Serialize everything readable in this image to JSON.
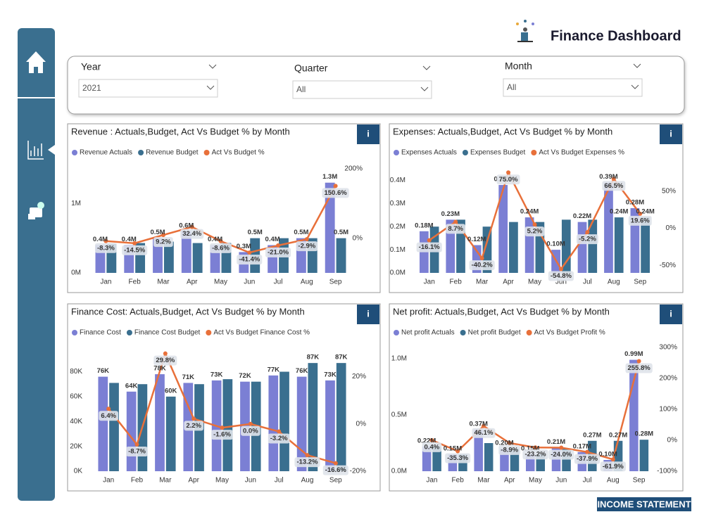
{
  "header": {
    "title": "Finance Dashboard"
  },
  "filters": [
    {
      "label": "Year",
      "value": "2021"
    },
    {
      "label": "Quarter",
      "value": "All"
    },
    {
      "label": "Month",
      "value": "All"
    }
  ],
  "info_button": "i",
  "footer": "INCOME STATEMENT",
  "chart_data": [
    {
      "type": "combo",
      "title": "Revenue : Actuals,Budget, Act Vs Budget % by Month",
      "categories": [
        "Jan",
        "Feb",
        "Mar",
        "Apr",
        "May",
        "Jun",
        "Jul",
        "Aug",
        "Sep"
      ],
      "ylim": [
        0,
        1.5
      ],
      "yticks": [
        {
          "value": 0,
          "label": "0M"
        },
        {
          "value": 1,
          "label": "1M"
        }
      ],
      "y2lim": [
        -100,
        200
      ],
      "y2ticks": [
        {
          "value": 0,
          "label": "0%"
        },
        {
          "value": 200,
          "label": "200%"
        }
      ],
      "series": [
        {
          "name": "Revenue Actuals",
          "color": "#7b7fd4",
          "type": "bar",
          "values": [
            0.4,
            0.4,
            0.5,
            0.6,
            0.4,
            0.3,
            0.4,
            0.5,
            1.3
          ],
          "value_labels": [
            "0.4M",
            "0.4M",
            "0.5M",
            "0.6M",
            "0.4M",
            "0.3M",
            "0.4M",
            "0.5M",
            "1.3M"
          ]
        },
        {
          "name": "Revenue Budget",
          "color": "#3a6f8f",
          "type": "bar",
          "values": [
            0.42,
            0.43,
            0.45,
            0.43,
            0.43,
            0.5,
            0.5,
            0.5,
            0.5
          ],
          "value_labels": [
            null,
            null,
            null,
            null,
            null,
            "0.5M",
            null,
            null,
            "0.5M"
          ]
        },
        {
          "name": "Act Vs Budget %",
          "color": "#e8703a",
          "type": "line",
          "axis": "y2",
          "values": [
            -8.3,
            -14.5,
            9.2,
            32.4,
            -8.6,
            -41.4,
            -21.0,
            -2.9,
            150.6
          ],
          "value_labels": [
            "-8.3%",
            "-14.5%",
            "9.2%",
            "32.4%",
            "-8.6%",
            "-41.4%",
            "-21.0%",
            "-2.9%",
            "150.6%"
          ]
        }
      ]
    },
    {
      "type": "combo",
      "title": "Expenses: Actuals,Budget, Act Vs Budget % by Month",
      "categories": [
        "Jan",
        "Feb",
        "Mar",
        "Apr",
        "May",
        "Jun",
        "Jul",
        "Aug",
        "Sep"
      ],
      "ylim": [
        0,
        0.45
      ],
      "yticks": [
        {
          "value": 0,
          "label": "0.0M"
        },
        {
          "value": 0.1,
          "label": "0.1M"
        },
        {
          "value": 0.2,
          "label": "0.2M"
        },
        {
          "value": 0.3,
          "label": "0.3M"
        },
        {
          "value": 0.4,
          "label": "0.4M"
        }
      ],
      "y2lim": [
        -60,
        80
      ],
      "y2ticks": [
        {
          "value": -50,
          "label": "-50%"
        },
        {
          "value": 0,
          "label": "0%"
        },
        {
          "value": 50,
          "label": "50%"
        }
      ],
      "series": [
        {
          "name": "Expenses Actuals",
          "color": "#7b7fd4",
          "type": "bar",
          "values": [
            0.18,
            0.23,
            0.12,
            0.38,
            0.24,
            0.1,
            0.22,
            0.39,
            0.28
          ],
          "value_labels": [
            "0.18M",
            "0.23M",
            "0.12M",
            "0.38M",
            "0.24M",
            "0.10M",
            "0.22M",
            "0.39M",
            "0.28M"
          ]
        },
        {
          "name": "Expenses Budget",
          "color": "#3a6f8f",
          "type": "bar",
          "values": [
            0.2,
            0.23,
            0.2,
            0.22,
            0.22,
            0.23,
            0.23,
            0.24,
            0.24
          ],
          "value_labels": [
            null,
            null,
            null,
            null,
            null,
            null,
            null,
            "0.24M",
            "0.24M"
          ]
        },
        {
          "name": "Act Vs Budget Expenses %",
          "color": "#e8703a",
          "type": "line",
          "axis": "y2",
          "values": [
            -16.1,
            8.7,
            -40.2,
            75.0,
            5.2,
            -54.8,
            -5.2,
            66.5,
            19.6
          ],
          "value_labels": [
            "-16.1%",
            "8.7%",
            "-40.2%",
            "75.0%",
            "5.2%",
            "-54.8%",
            "-5.2%",
            "66.5%",
            "19.6%"
          ]
        }
      ]
    },
    {
      "type": "combo",
      "title": "Finance Cost: Actuals,Budget, Act Vs Budget % by Month",
      "categories": [
        "Jan",
        "Feb",
        "Mar",
        "Apr",
        "May",
        "Jun",
        "Jul",
        "Aug",
        "Sep"
      ],
      "ylim": [
        0,
        95
      ],
      "yticks": [
        {
          "value": 0,
          "label": "0K"
        },
        {
          "value": 20,
          "label": "20K"
        },
        {
          "value": 40,
          "label": "40K"
        },
        {
          "value": 60,
          "label": "60K"
        },
        {
          "value": 80,
          "label": "80K"
        }
      ],
      "y2lim": [
        -20,
        30
      ],
      "y2ticks": [
        {
          "value": -20,
          "label": "-20%"
        },
        {
          "value": 0,
          "label": "0%"
        },
        {
          "value": 20,
          "label": "20%"
        }
      ],
      "series": [
        {
          "name": "Finance Cost",
          "color": "#7b7fd4",
          "type": "bar",
          "values": [
            76,
            64,
            78,
            71,
            73,
            72,
            77,
            76,
            73
          ],
          "value_labels": [
            "76K",
            "64K",
            "78K",
            "71K",
            "73K",
            "72K",
            "77K",
            "76K",
            "73K"
          ]
        },
        {
          "name": "Finance Cost Budget",
          "color": "#3a6f8f",
          "type": "bar",
          "values": [
            71,
            70,
            60,
            70,
            74,
            72,
            80,
            87,
            87
          ],
          "value_labels": [
            null,
            null,
            "60K",
            null,
            null,
            null,
            null,
            "87K",
            "87K"
          ]
        },
        {
          "name": "Act Vs Budget Finance Cost %",
          "color": "#e8703a",
          "type": "line",
          "axis": "y2",
          "values": [
            6.4,
            -8.7,
            29.8,
            2.2,
            -1.6,
            0.0,
            -3.2,
            -13.2,
            -16.6
          ],
          "value_labels": [
            "6.4%",
            "-8.7%",
            "29.8%",
            "2.2%",
            "-1.6%",
            "0.0%",
            "-3.2%",
            "-13.2%",
            "-16.6%"
          ]
        }
      ]
    },
    {
      "type": "combo",
      "title": "Net profit: Actuals,Budget, Act Vs Budget % by Month",
      "categories": [
        "Jan",
        "Feb",
        "Mar",
        "Apr",
        "May",
        "Jun",
        "Jul",
        "Aug",
        "Sep"
      ],
      "ylim": [
        0,
        1.1
      ],
      "yticks": [
        {
          "value": 0,
          "label": "0.0M"
        },
        {
          "value": 0.5,
          "label": "0.5M"
        },
        {
          "value": 1,
          "label": "1.0M"
        }
      ],
      "y2lim": [
        -100,
        300
      ],
      "y2ticks": [
        {
          "value": -100,
          "label": "-100%"
        },
        {
          "value": 0,
          "label": "0%"
        },
        {
          "value": 100,
          "label": "100%"
        },
        {
          "value": 200,
          "label": "200%"
        },
        {
          "value": 300,
          "label": "300%"
        }
      ],
      "series": [
        {
          "name": "Net profit Actuals",
          "color": "#7b7fd4",
          "type": "bar",
          "values": [
            0.22,
            0.15,
            0.37,
            0.2,
            0.15,
            0.21,
            0.17,
            0.1,
            0.99
          ],
          "value_labels": [
            "0.22M",
            "0.15M",
            "0.37M",
            "0.20M",
            "0.15M",
            "0.21M",
            "0.17M",
            "0.10M",
            "0.99M"
          ]
        },
        {
          "name": "Net profit Budget",
          "color": "#3a6f8f",
          "type": "bar",
          "values": [
            0.22,
            0.15,
            0.25,
            0.2,
            0.15,
            0.2,
            0.27,
            0.27,
            0.28
          ],
          "value_labels": [
            null,
            null,
            null,
            null,
            null,
            null,
            "0.27M",
            "0.27M",
            "0.28M"
          ]
        },
        {
          "name": "Act Vs Budget Profit %",
          "color": "#e8703a",
          "type": "line",
          "axis": "y2",
          "values": [
            0.4,
            -35.3,
            46.1,
            -8.9,
            -23.2,
            -24.0,
            -37.9,
            -61.9,
            255.8
          ],
          "value_labels": [
            "0.4%",
            "-35.3%",
            "46.1%",
            "-8.9%",
            "-23.2%",
            "-24.0%",
            "-37.9%",
            "-61.9%",
            "255.8%"
          ]
        }
      ]
    }
  ]
}
